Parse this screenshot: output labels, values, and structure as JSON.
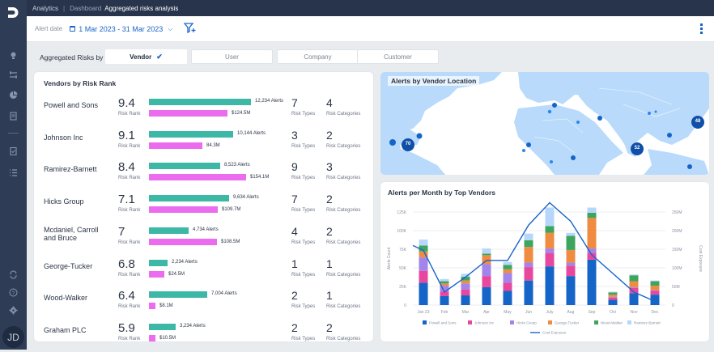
{
  "app": {
    "breadcrumb": [
      "Analytics",
      "Dashboard"
    ],
    "current_page": "Aggregated risks analysis",
    "user_initials": "JD"
  },
  "sidebar": {
    "icons": [
      "lightbulb-icon",
      "flow-icon",
      "pie-chart-icon",
      "document-icon",
      "clipboard-check-icon",
      "list-icon",
      "sync-icon",
      "help-icon",
      "gear-icon"
    ]
  },
  "filters": {
    "alert_date_label": "Alert date",
    "date_range": "1 Mar 2023 - 31 Mar 2023"
  },
  "aggregate": {
    "label": "Aggregated Risks by",
    "tabs": [
      {
        "label": "Vendor",
        "active": true
      },
      {
        "label": "User",
        "active": false
      },
      {
        "label": "Company",
        "active": false
      },
      {
        "label": "Customer",
        "active": false
      }
    ]
  },
  "vendors_card": {
    "title": "Vendors by Risk Rank",
    "rank_label": "Risk Rank",
    "types_label": "Risk Types",
    "categories_label": "Risk Categories",
    "rows": [
      {
        "name": "Powell and Sons",
        "rank": "9.4",
        "alerts": 12234,
        "alerts_label": "12,234 Alerts",
        "cost": 124.5,
        "cost_label": "$124.5M",
        "types": "7",
        "categories": "4"
      },
      {
        "name": "Johnson Inc",
        "rank": "9.1",
        "alerts": 10144,
        "alerts_label": "10,144 Alerts",
        "cost": 84.3,
        "cost_label": "84.3M",
        "types": "3",
        "categories": "2"
      },
      {
        "name": "Ramirez-Barnett",
        "rank": "8.4",
        "alerts": 8523,
        "alerts_label": "8,523 Alerts",
        "cost": 154.1,
        "cost_label": "$154.1M",
        "types": "9",
        "categories": "3"
      },
      {
        "name": "Hicks Group",
        "rank": "7.1",
        "alerts": 9634,
        "alerts_label": "9,634 Alerts",
        "cost": 109.7,
        "cost_label": "$109.7M",
        "types": "7",
        "categories": "2"
      },
      {
        "name": "Mcdaniel, Carroll and Bruce",
        "rank": "7",
        "alerts": 4734,
        "alerts_label": "4,734 Alerts",
        "cost": 108.5,
        "cost_label": "$108.5M",
        "types": "4",
        "categories": "2"
      },
      {
        "name": "George-Tucker",
        "rank": "6.8",
        "alerts": 2234,
        "alerts_label": "2,234 Alerts",
        "cost": 24.5,
        "cost_label": "$24.5M",
        "types": "1",
        "categories": "1"
      },
      {
        "name": "Wood-Walker",
        "rank": "6.4",
        "alerts": 7004,
        "alerts_label": "7,004 Alerts",
        "cost": 8.1,
        "cost_label": "$8.1M",
        "types": "2",
        "categories": "1"
      },
      {
        "name": "Graham PLC",
        "rank": "5.9",
        "alerts": 3234,
        "alerts_label": "3,234 Alerts",
        "cost": 10.5,
        "cost_label": "$10.5M",
        "types": "2",
        "categories": "2"
      }
    ]
  },
  "map_card": {
    "title": "Alerts by Vendor Location",
    "clusters": [
      "70",
      "52",
      "48"
    ]
  },
  "colors": {
    "teal": "#3db8a7",
    "pink": "#ec6cf0",
    "accent": "#1a64c9"
  },
  "chart_data": {
    "type": "bar",
    "title": "Alerts per Month by Top Vendors",
    "stacked": true,
    "categories": [
      "Jan 23",
      "Feb",
      "Mar",
      "Apr",
      "May",
      "Jun",
      "July",
      "Aug",
      "Sep",
      "Oct",
      "Nov",
      "Dec"
    ],
    "ylabel": "Alerts Count",
    "ylim": [
      0,
      125000
    ],
    "yticks": [
      "0",
      "25K",
      "50K",
      "75K",
      "100K",
      "125K"
    ],
    "y2label": "Cost Exposure",
    "y2lim": [
      0,
      250
    ],
    "y2ticks": [
      "0",
      "50M",
      "100M",
      "150M",
      "200M",
      "250M"
    ],
    "grid": true,
    "legend_position": "bottom",
    "series": [
      {
        "name": "Powell and Sons",
        "color": "#1565c8",
        "values": [
          30,
          12,
          13,
          24,
          19,
          33,
          52,
          39,
          61,
          7,
          16,
          14
        ]
      },
      {
        "name": "Johnson Inc",
        "color": "#e8479e",
        "values": [
          16,
          6,
          8,
          15,
          11,
          18,
          18,
          14,
          9,
          3,
          7,
          5
        ]
      },
      {
        "name": "Hicks Group",
        "color": "#a384ea",
        "values": [
          18,
          8,
          8,
          16,
          13,
          6,
          6,
          4,
          6,
          1,
          1,
          1
        ]
      },
      {
        "name": "George-Tucker",
        "color": "#ef8c42",
        "values": [
          8,
          3,
          4,
          12,
          5,
          21,
          21,
          17,
          41,
          3,
          8,
          6
        ]
      },
      {
        "name": "Wood-Walker",
        "color": "#3ea55e",
        "values": [
          8,
          3,
          5,
          2,
          6,
          9,
          9,
          19,
          7,
          3,
          8,
          6
        ]
      },
      {
        "name": "Ramirez-Barnett",
        "color": "#b6d7fb",
        "values": [
          8,
          3,
          4,
          7,
          4,
          9,
          25,
          4,
          7,
          1,
          1,
          1
        ]
      }
    ],
    "series_units": "thousands of alerts",
    "line": {
      "name": "Cost Exposure",
      "color": "#1a64c9",
      "values": [
        147,
        35,
        75,
        120,
        120,
        215,
        275,
        225,
        135,
        85,
        35,
        10
      ],
      "units": "millions"
    }
  }
}
